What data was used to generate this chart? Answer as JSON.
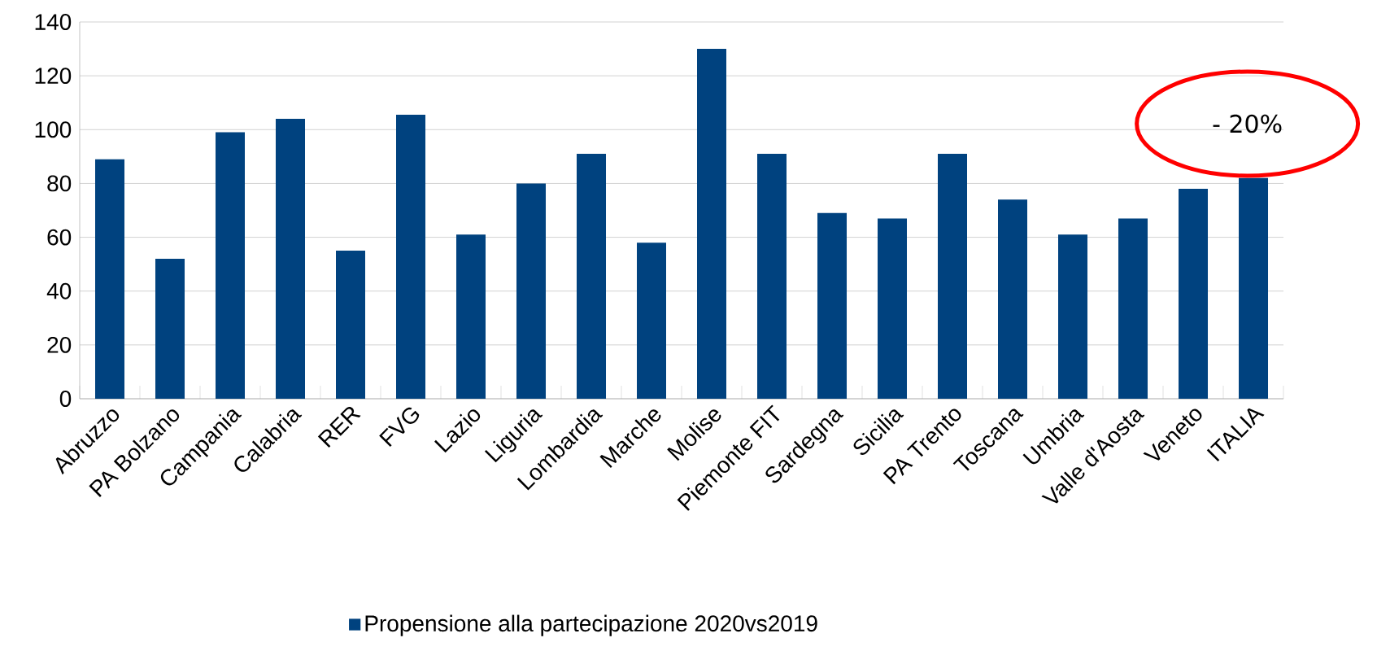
{
  "chart_data": {
    "type": "bar",
    "categories": [
      "Abruzzo",
      "PA Bolzano",
      "Campania",
      "Calabria",
      "RER",
      "FVG",
      "Lazio",
      "Liguria",
      "Lombardia",
      "Marche",
      "Molise",
      "Piemonte FIT",
      "Sardegna",
      "Sicilia",
      "PA Trento",
      "Toscana",
      "Umbria",
      "Valle d'Aosta",
      "Veneto",
      "ITALIA"
    ],
    "series": [
      {
        "name": "Propensione alla partecipazione 2020vs2019",
        "color": "#00427f",
        "values": [
          89,
          52,
          99,
          104,
          55,
          105.5,
          61,
          80,
          91,
          58,
          130,
          91,
          69,
          67,
          91,
          74,
          61,
          67,
          78,
          82
        ]
      }
    ],
    "ylim": [
      0,
      140
    ],
    "yticks": [
      0,
      20,
      40,
      60,
      80,
      100,
      120,
      140
    ],
    "grid": "y",
    "legend": "bottom",
    "annotations": [
      "- 20%"
    ]
  }
}
